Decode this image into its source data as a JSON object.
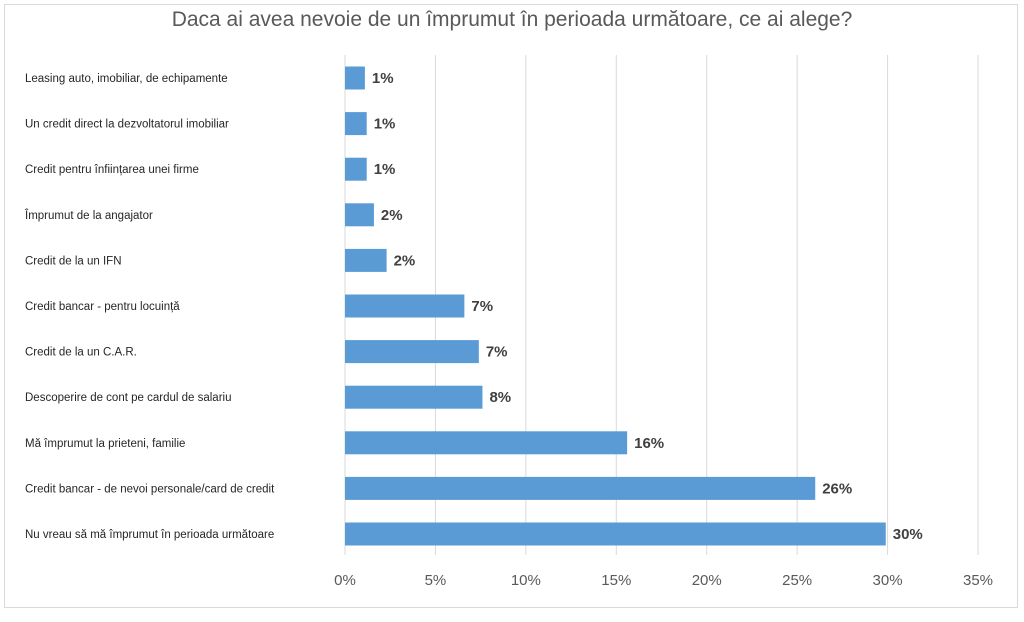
{
  "chart_data": {
    "type": "bar",
    "orientation": "horizontal",
    "title": "Daca ai avea nevoie de un împrumut în perioada următoare, ce ai alege?",
    "categories": [
      "Leasing auto, imobiliar, de echipamente",
      "Un credit direct la dezvoltatorul imobiliar",
      "Credit pentru înființarea unei firme",
      "Împrumut de la angajator",
      "Credit de la un IFN",
      "Credit bancar - pentru locuință",
      "Credit de la un C.A.R.",
      "Descoperire de cont pe cardul de salariu",
      "Mă împrumut la prieteni, familie",
      "Credit bancar - de nevoi personale/card de credit",
      "Nu vreau să mă împrumut în perioada următoare"
    ],
    "values": [
      1.1,
      1.2,
      1.2,
      1.6,
      2.3,
      6.6,
      7.4,
      7.6,
      15.6,
      26.0,
      29.9
    ],
    "data_labels": [
      "1%",
      "1%",
      "1%",
      "2%",
      "2%",
      "7%",
      "7%",
      "8%",
      "16%",
      "26%",
      "30%"
    ],
    "xlim": [
      0,
      35
    ],
    "x_ticks": [
      0,
      5,
      10,
      15,
      20,
      25,
      30,
      35
    ],
    "x_tick_labels": [
      "0%",
      "5%",
      "10%",
      "15%",
      "20%",
      "25%",
      "30%",
      "35%"
    ],
    "grid": "vertical",
    "bar_color": "#5b9bd5",
    "legend": "none"
  }
}
